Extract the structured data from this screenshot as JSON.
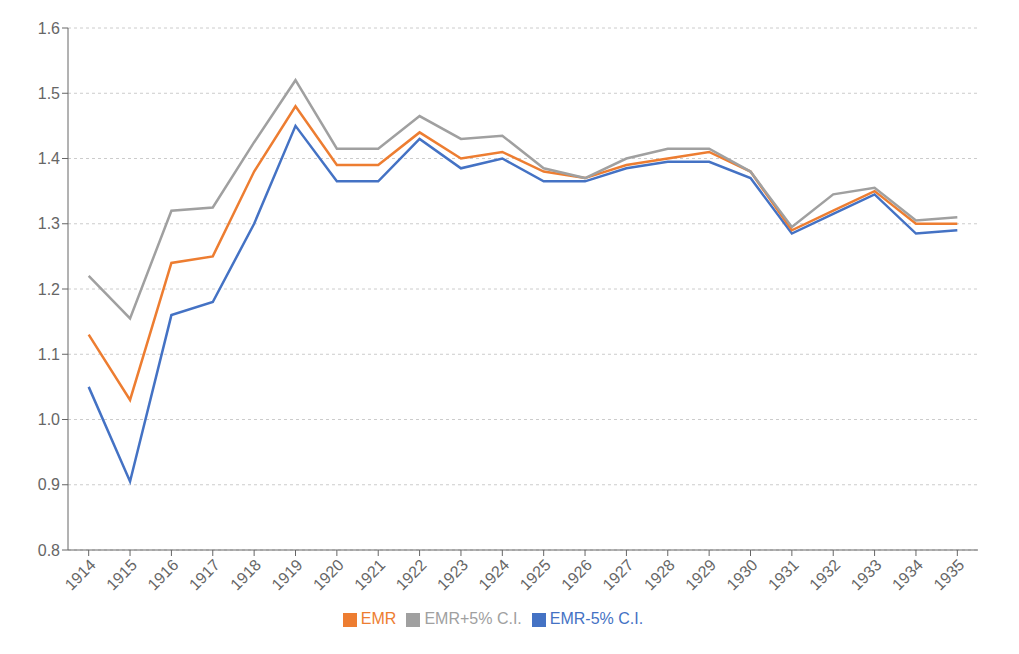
{
  "chart_data": {
    "type": "line",
    "x": [
      1914,
      1915,
      1916,
      1917,
      1918,
      1919,
      1920,
      1921,
      1922,
      1923,
      1924,
      1925,
      1926,
      1927,
      1928,
      1929,
      1930,
      1931,
      1932,
      1933,
      1934,
      1935
    ],
    "series": [
      {
        "name": "EMR-5% C.I.",
        "color": "#4472C4",
        "values": [
          1.05,
          0.905,
          1.16,
          1.18,
          1.3,
          1.45,
          1.365,
          1.365,
          1.43,
          1.385,
          1.4,
          1.365,
          1.365,
          1.385,
          1.395,
          1.395,
          1.37,
          1.285,
          1.315,
          1.345,
          1.285,
          1.29
        ]
      },
      {
        "name": "EMR",
        "color": "#ED7D31",
        "values": [
          1.13,
          1.03,
          1.24,
          1.25,
          1.38,
          1.48,
          1.39,
          1.39,
          1.44,
          1.4,
          1.41,
          1.38,
          1.37,
          1.39,
          1.4,
          1.41,
          1.38,
          1.29,
          1.32,
          1.35,
          1.3,
          1.3
        ]
      },
      {
        "name": "EMR+5% C.I.",
        "color": "#A0A0A0",
        "values": [
          1.22,
          1.155,
          1.32,
          1.325,
          1.425,
          1.52,
          1.415,
          1.415,
          1.465,
          1.43,
          1.435,
          1.385,
          1.37,
          1.4,
          1.415,
          1.415,
          1.38,
          1.295,
          1.345,
          1.355,
          1.305,
          1.31
        ]
      }
    ],
    "xlim": [
      1913.5,
      1935.5
    ],
    "xticks": [
      1914,
      1915,
      1916,
      1917,
      1918,
      1919,
      1920,
      1921,
      1922,
      1923,
      1924,
      1925,
      1926,
      1927,
      1928,
      1929,
      1930,
      1931,
      1932,
      1933,
      1934,
      1935
    ],
    "ylim": [
      0.8,
      1.6
    ],
    "yticks": [
      0.8,
      0.9,
      {
        "value": 1,
        "label": "1.0"
      },
      1.1,
      1.2,
      1.3,
      1.4,
      1.5,
      1.6
    ],
    "grid": "y",
    "legend": "bottom",
    "marker": "none"
  }
}
